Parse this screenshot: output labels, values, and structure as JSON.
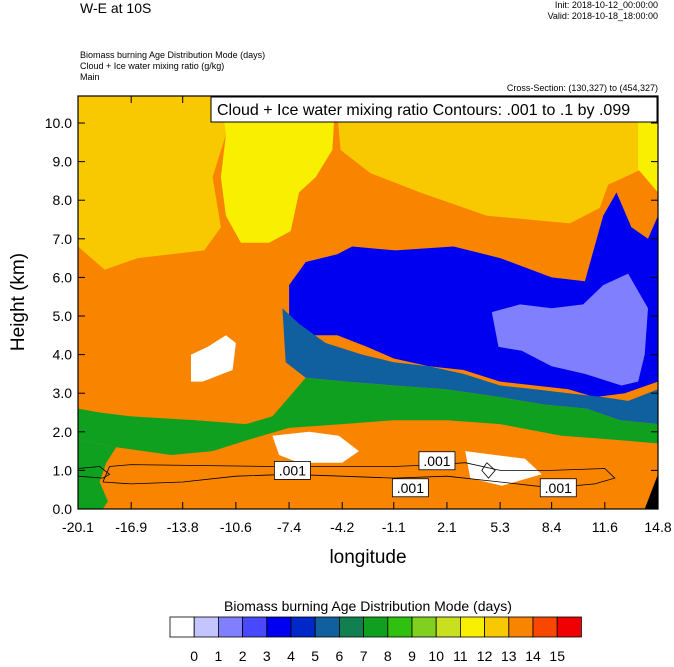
{
  "header": {
    "title": "W-E at 10S",
    "init": "Init: 2018-10-12_00:00:00",
    "valid": "Valid: 2018-10-18_18:00:00",
    "field1": "Biomass burning Age Distribution Mode    (days)",
    "field2": "Cloud + Ice water mixing ratio    (g/kg)",
    "field3": "Main",
    "cross_section": "Cross-Section: (130,327) to (454,327)"
  },
  "chart_data": {
    "type": "heatmap",
    "contour_label": "Cloud + Ice water mixing ratio Contours: .001 to .1 by .099",
    "ylabel": "Height (km)",
    "xlabel": "longitude",
    "x_ticks": [
      "-20.1",
      "-16.9",
      "-13.8",
      "-10.6",
      "-7.4",
      "-4.2",
      "-1.1",
      "2.1",
      "5.3",
      "8.4",
      "11.6",
      "14.8"
    ],
    "xlim": [
      -20.1,
      14.8
    ],
    "y_ticks": [
      "0.0",
      "1.0",
      "2.0",
      "3.0",
      "4.0",
      "5.0",
      "6.0",
      "7.0",
      "8.0",
      "9.0",
      "10.0"
    ],
    "ylim": [
      0,
      10.7
    ],
    "contour_values": [
      ".001",
      ".001",
      ".001",
      ".001"
    ],
    "colorbar": {
      "title": "Biomass burning Age Distribution Mode  (days)",
      "labels": [
        "0",
        "1",
        "2",
        "3",
        "4",
        "5",
        "6",
        "7",
        "8",
        "9",
        "10",
        "11",
        "12",
        "13",
        "14",
        "15"
      ],
      "colors": [
        "#ffffff",
        "#c4c4ff",
        "#8080ff",
        "#4848ff",
        "#0000f0",
        "#0028c8",
        "#1060a0",
        "#108050",
        "#10a020",
        "#30c010",
        "#80d020",
        "#c8e020",
        "#f8f000",
        "#f8c800",
        "#f88400",
        "#f84800",
        "#f00000"
      ]
    },
    "regions": [
      {
        "name": "upper-left-old",
        "value": 13,
        "poly": [
          [
            -20.1,
            10.7
          ],
          [
            -20.1,
            6.8
          ],
          [
            -18.5,
            6.2
          ],
          [
            -16.5,
            6.5
          ],
          [
            -12.5,
            6.7
          ],
          [
            -11.5,
            7.3
          ],
          [
            -12,
            8.6
          ],
          [
            -11.2,
            9.7
          ],
          [
            -9,
            10.1
          ],
          [
            -8.5,
            10.7
          ]
        ]
      },
      {
        "name": "upper-mid-yellow",
        "value": 12,
        "poly": [
          [
            -11.5,
            10.7
          ],
          [
            -11.2,
            9.7
          ],
          [
            -11.5,
            8.6
          ],
          [
            -11.2,
            7.6
          ],
          [
            -10.3,
            6.9
          ],
          [
            -8.6,
            6.9
          ],
          [
            -7.3,
            7.2
          ],
          [
            -6.8,
            8.2
          ],
          [
            -5.8,
            8.6
          ],
          [
            -4.8,
            9.3
          ],
          [
            -4.6,
            10.7
          ]
        ]
      },
      {
        "name": "upper-right-old",
        "value": 13,
        "poly": [
          [
            -4.6,
            10.7
          ],
          [
            -4.3,
            9.3
          ],
          [
            -2.5,
            8.7
          ],
          [
            0.5,
            8.2
          ],
          [
            4.5,
            7.6
          ],
          [
            9.5,
            7.4
          ],
          [
            11.3,
            7.8
          ],
          [
            11.8,
            8.4
          ],
          [
            13.8,
            8.8
          ],
          [
            14.8,
            8.8
          ],
          [
            14.8,
            10.7
          ]
        ]
      },
      {
        "name": "ne-yellow",
        "value": 12,
        "poly": [
          [
            13.6,
            10.7
          ],
          [
            13.6,
            8.8
          ],
          [
            14.8,
            8.2
          ],
          [
            14.8,
            10.7
          ]
        ]
      },
      {
        "name": "blue-mass",
        "value": 4,
        "poly": [
          [
            -7.4,
            5.8
          ],
          [
            -6.4,
            6.4
          ],
          [
            -4.5,
            6.6
          ],
          [
            -3.6,
            6.8
          ],
          [
            -1,
            6.7
          ],
          [
            2.5,
            6.8
          ],
          [
            5.3,
            6.5
          ],
          [
            8.4,
            6.0
          ],
          [
            10.4,
            5.9
          ],
          [
            11.5,
            7.6
          ],
          [
            12.3,
            8.2
          ],
          [
            13.2,
            7.3
          ],
          [
            14.2,
            7.0
          ],
          [
            14.8,
            7.6
          ],
          [
            14.8,
            3.3
          ],
          [
            12.8,
            3.0
          ],
          [
            11.0,
            2.9
          ],
          [
            9.4,
            3.1
          ],
          [
            7.4,
            3.2
          ],
          [
            5.3,
            3.3
          ],
          [
            3.1,
            3.6
          ],
          [
            1.0,
            3.7
          ],
          [
            -1.1,
            3.9
          ],
          [
            -2.7,
            4.2
          ],
          [
            -4.5,
            4.5
          ],
          [
            -6.3,
            4.5
          ],
          [
            -7.4,
            4.9
          ]
        ]
      },
      {
        "name": "east-light-blue",
        "value": 2,
        "poly": [
          [
            4.8,
            5.1
          ],
          [
            6.5,
            5.3
          ],
          [
            8.4,
            5.2
          ],
          [
            10.3,
            5.3
          ],
          [
            11.5,
            5.8
          ],
          [
            13.0,
            6.1
          ],
          [
            14.2,
            5.2
          ],
          [
            14.0,
            4.0
          ],
          [
            13.6,
            3.3
          ],
          [
            12.6,
            3.2
          ],
          [
            10.4,
            3.5
          ],
          [
            8.4,
            3.7
          ],
          [
            6.6,
            4.1
          ],
          [
            5.2,
            4.2
          ]
        ]
      },
      {
        "name": "mid-teal",
        "value": 6,
        "poly": [
          [
            -7.8,
            5.2
          ],
          [
            -6.8,
            4.8
          ],
          [
            -5.2,
            4.3
          ],
          [
            -3.0,
            4.0
          ],
          [
            -1.1,
            3.8
          ],
          [
            1.0,
            3.7
          ],
          [
            3.1,
            3.5
          ],
          [
            5.3,
            3.2
          ],
          [
            7.4,
            3.1
          ],
          [
            9.4,
            3.0
          ],
          [
            11.5,
            2.9
          ],
          [
            13.0,
            2.8
          ],
          [
            14.8,
            3.1
          ],
          [
            14.8,
            2.2
          ],
          [
            12.5,
            2.3
          ],
          [
            10.5,
            2.6
          ],
          [
            8.0,
            2.7
          ],
          [
            5.3,
            2.9
          ],
          [
            2.0,
            3.1
          ],
          [
            -1.1,
            3.2
          ],
          [
            -4.0,
            3.3
          ],
          [
            -6.4,
            3.4
          ],
          [
            -7.6,
            3.8
          ]
        ]
      },
      {
        "name": "low-green-band",
        "value": 8,
        "poly": [
          [
            -20.1,
            2.6
          ],
          [
            -18.8,
            2.5
          ],
          [
            -16.9,
            2.4
          ],
          [
            -13.0,
            2.3
          ],
          [
            -10.0,
            2.2
          ],
          [
            -8.4,
            2.4
          ],
          [
            -7.4,
            2.9
          ],
          [
            -6.4,
            3.4
          ],
          [
            -4.0,
            3.3
          ],
          [
            -1.1,
            3.2
          ],
          [
            2.0,
            3.1
          ],
          [
            5.3,
            2.9
          ],
          [
            8.0,
            2.7
          ],
          [
            10.5,
            2.6
          ],
          [
            12.5,
            2.3
          ],
          [
            14.8,
            2.2
          ],
          [
            14.8,
            1.7
          ],
          [
            12.0,
            1.8
          ],
          [
            9.0,
            1.9
          ],
          [
            5.3,
            2.2
          ],
          [
            2.1,
            2.3
          ],
          [
            -1.1,
            2.3
          ],
          [
            -4.2,
            2.2
          ],
          [
            -7.4,
            2.1
          ],
          [
            -9.8,
            1.8
          ],
          [
            -12.0,
            1.5
          ],
          [
            -14.5,
            1.4
          ],
          [
            -17.8,
            1.6
          ],
          [
            -20.1,
            1.8
          ]
        ]
      },
      {
        "name": "left-green-lower",
        "value": 8,
        "poly": [
          [
            -20.1,
            1.8
          ],
          [
            -17.8,
            1.6
          ],
          [
            -18.4,
            1.2
          ],
          [
            -18.8,
            0.7
          ],
          [
            -18.3,
            0.2
          ],
          [
            -18.6,
            0.0
          ],
          [
            -20.1,
            0.0
          ]
        ]
      },
      {
        "name": "white-blob-west",
        "value": 0,
        "poly": [
          [
            -12.3,
            4.2
          ],
          [
            -11.2,
            4.5
          ],
          [
            -10.6,
            4.3
          ],
          [
            -10.8,
            3.6
          ],
          [
            -12.6,
            3.3
          ],
          [
            -13.3,
            3.3
          ],
          [
            -13.3,
            4.0
          ]
        ]
      },
      {
        "name": "white-blob-center",
        "value": 0,
        "poly": [
          [
            -8.4,
            1.9
          ],
          [
            -6.2,
            2.0
          ],
          [
            -4.4,
            1.9
          ],
          [
            -3.2,
            1.5
          ],
          [
            -4.2,
            1.2
          ],
          [
            -6.8,
            1.2
          ],
          [
            -8.0,
            1.4
          ]
        ]
      },
      {
        "name": "white-blob-east",
        "value": 0,
        "poly": [
          [
            3.2,
            1.5
          ],
          [
            6.8,
            1.3
          ],
          [
            7.8,
            0.9
          ],
          [
            5.4,
            0.6
          ],
          [
            3.5,
            0.8
          ]
        ]
      },
      {
        "name": "se-dark",
        "value": 16,
        "poly": [
          [
            14.0,
            0.0
          ],
          [
            14.8,
            0.0
          ],
          [
            14.8,
            0.9
          ]
        ]
      }
    ]
  }
}
